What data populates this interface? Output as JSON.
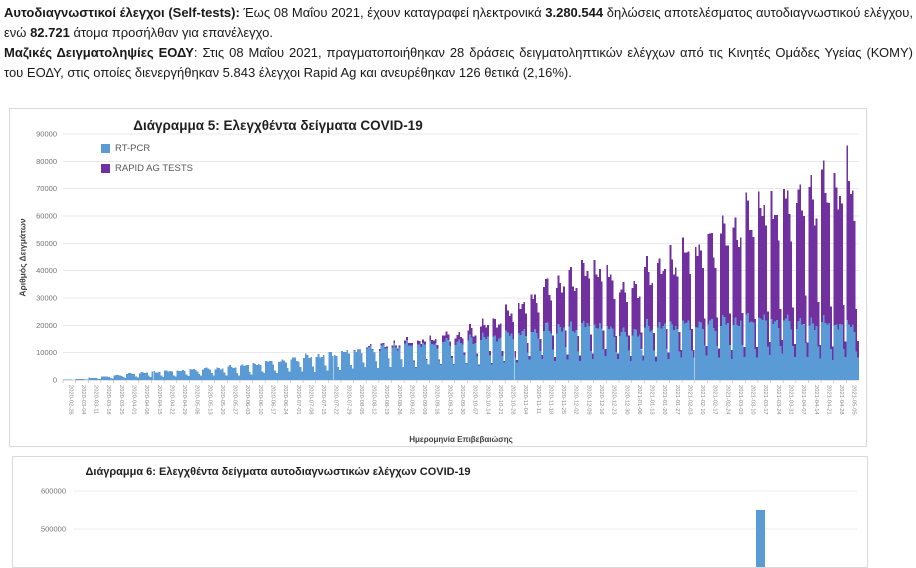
{
  "report_text": {
    "para1": [
      {
        "text": "Αυτοδιαγνωστικοί έλεγχοι (Self-tests):",
        "bold": true
      },
      {
        "text": " Έως 08 Μαΐου 2021, έχουν καταγραφεί ηλεκτρονικά ",
        "bold": false
      },
      {
        "text": "3.280.544",
        "bold": true
      },
      {
        "text": " δηλώσεις αποτελέσματος αυτοδιαγνωστικού ελέγχου, ενώ ",
        "bold": false
      },
      {
        "text": "82.721",
        "bold": true
      },
      {
        "text": " άτομα προσήλθαν για επανέλεγχο.",
        "bold": false
      }
    ],
    "para2": [
      {
        "text": "Μαζικές Δειγματοληψίες ΕΟΔΥ",
        "bold": true
      },
      {
        "text": ": Στις 08 Μαΐου 2021, πραγματοποιήθηκαν 28 δράσεις δειγματοληπτικών ελέγχων από τις Κινητές Ομάδες Υγείας (ΚΟΜΥ) του ΕΟΔΥ, στις οποίες διενεργήθηκαν 5.843 έλεγχοι Rapid Ag και ανευρέθηκαν 126 θετικά (2,16%).",
        "bold": false
      }
    ]
  },
  "chart_data": [
    {
      "type": "bar",
      "stacked": true,
      "title": "Διάγραμμα 5: Ελεγχθέντα δείγματα COVID-19",
      "xlabel": "Ημερομηνία Επιβεβαιώσης",
      "ylabel": "Αριθμός Δειγμάτων",
      "ylim": [
        0,
        90000
      ],
      "y_ticks": [
        0,
        10000,
        20000,
        30000,
        40000,
        50000,
        60000,
        70000,
        80000,
        90000
      ],
      "grid": "horizontal",
      "legend_position": "top-left",
      "bars": "daily, labelled weekly",
      "x_tick_labels": [
        "2020-02-26",
        "2020-03-04",
        "2020-03-11",
        "2020-03-18",
        "2020-03-25",
        "2020-04-01",
        "2020-04-08",
        "2020-04-15",
        "2020-04-22",
        "2020-04-29",
        "2020-05-06",
        "2020-05-13",
        "2020-05-20",
        "2020-05-27",
        "2020-06-03",
        "2020-06-10",
        "2020-06-17",
        "2020-06-24",
        "2020-07-01",
        "2020-07-08",
        "2020-07-15",
        "2020-07-22",
        "2020-07-29",
        "2020-08-05",
        "2020-08-12",
        "2020-08-19",
        "2020-08-26",
        "2020-09-02",
        "2020-09-09",
        "2020-09-16",
        "2020-09-23",
        "2020-09-30",
        "2020-10-07",
        "2020-10-14",
        "2020-10-21",
        "2020-10-28",
        "2020-11-04",
        "2020-11-11",
        "2020-11-18",
        "2020-11-25",
        "2020-12-02",
        "2020-12-09",
        "2020-12-16",
        "2020-12-23",
        "2020-12-30",
        "2021-01-06",
        "2021-01-13",
        "2021-01-20",
        "2021-01-27",
        "2021-02-03",
        "2021-02-10",
        "2021-02-17",
        "2021-02-24",
        "2021-03-03",
        "2021-03-10",
        "2021-03-17",
        "2021-03-24",
        "2021-03-31",
        "2021-04-07",
        "2021-04-14",
        "2021-04-21",
        "2021-04-28",
        "2021-05-05"
      ],
      "series": [
        {
          "name": "RT-PCR",
          "color": "#5B9BD5",
          "weekly_peak_values": [
            150,
            400,
            800,
            1300,
            1900,
            2400,
            2800,
            3100,
            3300,
            3600,
            4000,
            4300,
            4600,
            5000,
            5500,
            6200,
            6800,
            7400,
            8200,
            8800,
            9300,
            9800,
            10500,
            11500,
            12000,
            12500,
            13000,
            13200,
            13500,
            14000,
            14500,
            15000,
            15500,
            16000,
            16500,
            17000,
            18000,
            19000,
            19500,
            20000,
            20000,
            20500,
            21000,
            19500,
            18000,
            19000,
            20000,
            20500,
            21000,
            21000,
            21500,
            22000,
            22000,
            22500,
            23000,
            23000,
            23000,
            22500,
            22000,
            22000,
            21500,
            21000,
            21000
          ]
        },
        {
          "name": "RAPID AG TESTS",
          "color": "#7030A0",
          "weekly_peak_values": [
            0,
            0,
            0,
            0,
            0,
            0,
            0,
            0,
            0,
            0,
            0,
            0,
            0,
            0,
            0,
            0,
            0,
            0,
            0,
            0,
            0,
            0,
            0,
            200,
            400,
            700,
            900,
            1100,
            1400,
            1800,
            2300,
            2800,
            3800,
            5000,
            6500,
            8500,
            11000,
            14000,
            16500,
            18500,
            20000,
            21500,
            23000,
            21000,
            17000,
            19000,
            22000,
            24000,
            26000,
            28000,
            31000,
            34000,
            36000,
            38000,
            41000,
            44000,
            46000,
            47000,
            52000,
            53000,
            54000,
            55000,
            58000
          ]
        }
      ]
    },
    {
      "type": "bar",
      "title": "Διάγραμμα 6: Ελεγχθέντα δείγματα αυτοδιαγνωστικών ελέγχων COVID-19",
      "y_ticks_visible": [
        600000,
        500000
      ],
      "grid": "horizontal",
      "bar_color": "#5B9BD5",
      "visible_values": [
        550000
      ]
    }
  ]
}
